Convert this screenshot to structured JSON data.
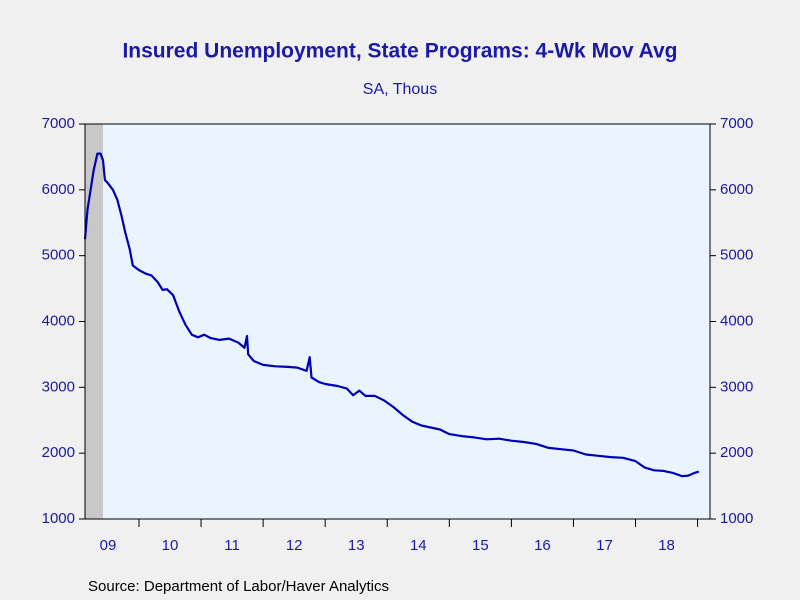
{
  "chart_data": {
    "type": "line",
    "title": "Insured Unemployment, State Programs: 4-Wk Mov Avg",
    "subtitle": "SA, Thous",
    "source": "Source:  Department of Labor/Haver Analytics",
    "xlim": [
      2009.13,
      2019.2
    ],
    "xticks": [
      {
        "value": 2009.5,
        "label": "09"
      },
      {
        "value": 2010.5,
        "label": "10"
      },
      {
        "value": 2011.5,
        "label": "11"
      },
      {
        "value": 2012.5,
        "label": "12"
      },
      {
        "value": 2013.5,
        "label": "13"
      },
      {
        "value": 2014.5,
        "label": "14"
      },
      {
        "value": 2015.5,
        "label": "15"
      },
      {
        "value": 2016.5,
        "label": "16"
      },
      {
        "value": 2017.5,
        "label": "17"
      },
      {
        "value": 2018.5,
        "label": "18"
      }
    ],
    "ylim": [
      1000,
      7000
    ],
    "yticks": [
      1000,
      2000,
      3000,
      4000,
      5000,
      6000,
      7000
    ],
    "y2lim": [
      1000,
      7000
    ],
    "y2ticks": [
      1000,
      2000,
      3000,
      4000,
      5000,
      6000,
      7000
    ],
    "shading": [
      [
        2009.13,
        2009.42
      ]
    ],
    "x": [
      2009.13,
      2009.17,
      2009.22,
      2009.27,
      2009.33,
      2009.38,
      2009.42,
      2009.45,
      2009.5,
      2009.58,
      2009.65,
      2009.72,
      2009.78,
      2009.85,
      2009.9,
      2010.0,
      2010.1,
      2010.2,
      2010.3,
      2010.38,
      2010.45,
      2010.55,
      2010.65,
      2010.75,
      2010.85,
      2010.95,
      2011.05,
      2011.15,
      2011.3,
      2011.45,
      2011.6,
      2011.7,
      2011.74,
      2011.76,
      2011.85,
      2012.0,
      2012.2,
      2012.4,
      2012.55,
      2012.7,
      2012.75,
      2012.78,
      2012.9,
      2013.0,
      2013.2,
      2013.35,
      2013.45,
      2013.55,
      2013.65,
      2013.8,
      2013.95,
      2014.1,
      2014.25,
      2014.4,
      2014.55,
      2014.7,
      2014.85,
      2015.0,
      2015.2,
      2015.4,
      2015.6,
      2015.8,
      2016.0,
      2016.2,
      2016.4,
      2016.6,
      2016.8,
      2017.0,
      2017.2,
      2017.4,
      2017.6,
      2017.8,
      2018.0,
      2018.15,
      2018.3,
      2018.45,
      2018.6,
      2018.75,
      2018.85,
      2018.95,
      2019.02
    ],
    "series": [
      {
        "name": "Insured Unemployment",
        "color": "#0000b4",
        "values": [
          5250,
          5700,
          6000,
          6300,
          6550,
          6550,
          6450,
          6150,
          6100,
          6000,
          5850,
          5600,
          5350,
          5100,
          4850,
          4780,
          4730,
          4700,
          4600,
          4480,
          4490,
          4400,
          4150,
          3950,
          3800,
          3760,
          3800,
          3750,
          3720,
          3740,
          3680,
          3600,
          3780,
          3500,
          3400,
          3340,
          3320,
          3310,
          3300,
          3250,
          3460,
          3150,
          3080,
          3050,
          3020,
          2980,
          2880,
          2950,
          2870,
          2870,
          2800,
          2700,
          2580,
          2480,
          2420,
          2390,
          2360,
          2290,
          2260,
          2240,
          2210,
          2220,
          2190,
          2170,
          2140,
          2080,
          2060,
          2040,
          1980,
          1960,
          1940,
          1930,
          1880,
          1780,
          1740,
          1730,
          1700,
          1650,
          1660,
          1700,
          1720
        ]
      }
    ]
  }
}
